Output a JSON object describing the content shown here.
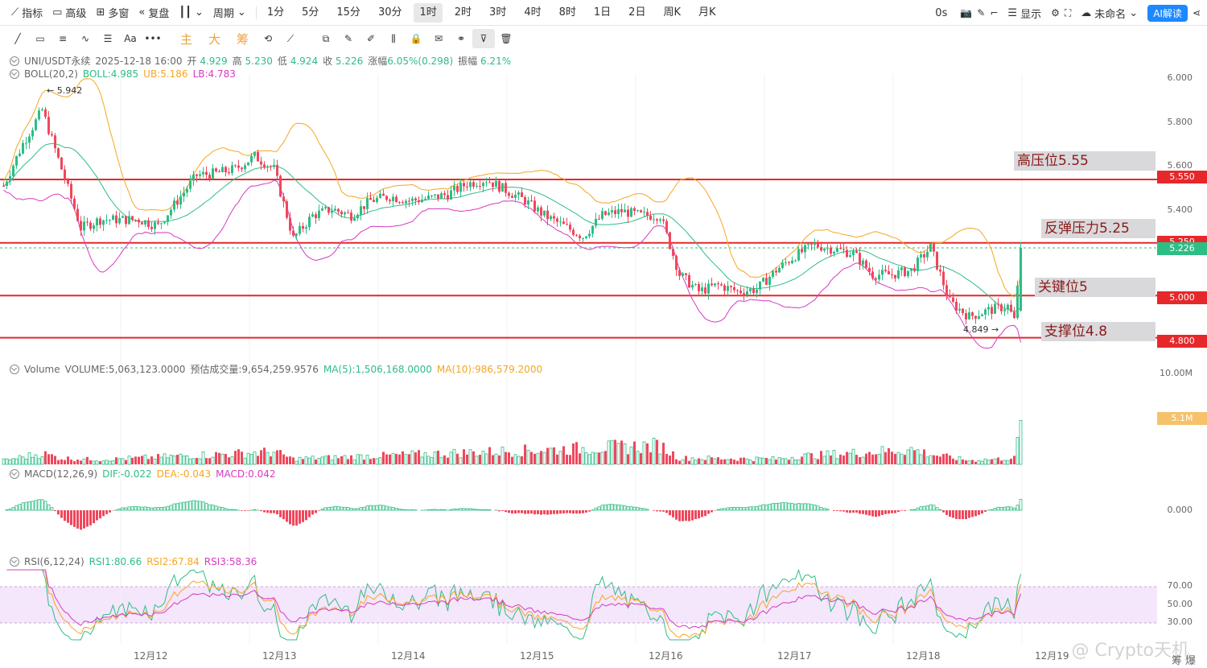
{
  "toolbar": {
    "indicator": "指标",
    "advanced": "高级",
    "multi_window": "多窗",
    "replay": "复盘",
    "chart_type_icon": "candle-icon",
    "period": "周期",
    "intervals": [
      "1分",
      "5分",
      "15分",
      "30分",
      "1时",
      "2时",
      "3时",
      "4时",
      "8时",
      "1日",
      "2日",
      "周K",
      "月K"
    ],
    "active_interval": "1时",
    "countdown": "0s",
    "display": "显示",
    "unnamed": "未命名",
    "ai": "AI解读"
  },
  "drawbar": {
    "modes": [
      "主",
      "大",
      "筹"
    ]
  },
  "legend": {
    "symbol": "UNI/USDT永续",
    "datetime": "2025-12-18 16:00",
    "open_label": "开",
    "open": "4.929",
    "high_label": "高",
    "high": "5.230",
    "low_label": "低",
    "low": "4.924",
    "close_label": "收",
    "close": "5.226",
    "change_label": "涨幅",
    "change": "6.05%(0.298)",
    "amp_label": "振幅",
    "amp": "6.21%",
    "boll_name": "BOLL(20,2)",
    "boll": "BOLL:4.985",
    "ub": "UB:5.186",
    "lb": "LB:4.783",
    "volume_name": "Volume",
    "volume": "VOLUME:5,063,123.0000",
    "est_volume": "预估成交量:9,654,259.9576",
    "vol_ma5": "MA(5):1,506,168.0000",
    "vol_ma10": "MA(10):986,579.2000",
    "macd_name": "MACD(12,26,9)",
    "dif": "DIF:-0.022",
    "dea": "DEA:-0.043",
    "macd": "MACD:0.042",
    "rsi_name": "RSI(6,12,24)",
    "rsi1": "RSI1:80.66",
    "rsi2": "RSI2:67.84",
    "rsi3": "RSI3:58.36"
  },
  "price_axis": [
    "6.000",
    "5.800",
    "5.600",
    "5.400",
    "5.000",
    "4.800"
  ],
  "price_tags": {
    "r555": "5.550",
    "current": "5.226",
    "r5": "5.000",
    "r48": "4.800",
    "hidden": "5.250"
  },
  "volume_axis": {
    "top": "10.00M",
    "tag": "5.1M"
  },
  "macd_axis": "0.000",
  "rsi_axis": [
    "70.00",
    "50.00",
    "30.00"
  ],
  "annotations": {
    "high": "高压位5.55",
    "rebound": "反弹压力5.25",
    "key": "关键位5",
    "support": "支撑位4.8",
    "max_price": "5.942",
    "min_price": "4.849"
  },
  "x_axis": [
    "12月12",
    "12月13",
    "12月14",
    "12月15",
    "12月16",
    "12月17",
    "12月18",
    "12月19"
  ],
  "watermark": "@ Crypto天机",
  "corner": [
    "筹",
    "爆"
  ],
  "colors": {
    "up": "#2ebd85",
    "down": "#f0475c",
    "mid": "#2ebd85",
    "ub": "#f5a623",
    "lb": "#d63bc1",
    "hline": "#e6282b",
    "rsiBand": "#f4e6fb"
  },
  "chart_data": {
    "type": "candlestick",
    "ylim": [
      4.73,
      6.05
    ],
    "support_resistance": [
      5.55,
      5.25,
      5.0,
      4.8
    ],
    "anchors": [
      [
        0,
        5.52
      ],
      [
        6,
        5.72
      ],
      [
        12,
        5.88
      ],
      [
        18,
        5.6
      ],
      [
        24,
        5.32
      ],
      [
        30,
        5.36
      ],
      [
        36,
        5.36
      ],
      [
        42,
        5.36
      ],
      [
        48,
        5.33
      ],
      [
        54,
        5.45
      ],
      [
        60,
        5.57
      ],
      [
        66,
        5.58
      ],
      [
        72,
        5.6
      ],
      [
        78,
        5.66
      ],
      [
        84,
        5.6
      ],
      [
        90,
        5.27
      ],
      [
        96,
        5.38
      ],
      [
        102,
        5.41
      ],
      [
        108,
        5.38
      ],
      [
        114,
        5.45
      ],
      [
        120,
        5.47
      ],
      [
        126,
        5.45
      ],
      [
        132,
        5.46
      ],
      [
        138,
        5.48
      ],
      [
        144,
        5.53
      ],
      [
        150,
        5.55
      ],
      [
        156,
        5.5
      ],
      [
        162,
        5.45
      ],
      [
        168,
        5.38
      ],
      [
        174,
        5.33
      ],
      [
        180,
        5.28
      ],
      [
        186,
        5.38
      ],
      [
        192,
        5.4
      ],
      [
        198,
        5.38
      ],
      [
        204,
        5.38
      ],
      [
        210,
        5.1
      ],
      [
        216,
        5.02
      ],
      [
        222,
        5.05
      ],
      [
        228,
        5.02
      ],
      [
        234,
        5.03
      ],
      [
        240,
        5.12
      ],
      [
        246,
        5.19
      ],
      [
        252,
        5.24
      ],
      [
        258,
        5.22
      ],
      [
        264,
        5.2
      ],
      [
        270,
        5.1
      ],
      [
        276,
        5.1
      ],
      [
        282,
        5.12
      ],
      [
        288,
        5.23
      ],
      [
        294,
        4.97
      ],
      [
        300,
        4.9
      ],
      [
        306,
        4.93
      ],
      [
        312,
        4.95
      ],
      [
        314,
        4.88
      ],
      [
        316,
        5.226
      ]
    ],
    "volume_anchors": [
      [
        0,
        0.5
      ],
      [
        12,
        1.4
      ],
      [
        18,
        0.8
      ],
      [
        30,
        0.6
      ],
      [
        84,
        1.6
      ],
      [
        90,
        0.7
      ],
      [
        204,
        2.4
      ],
      [
        210,
        0.8
      ],
      [
        240,
        0.7
      ],
      [
        246,
        1.0
      ],
      [
        282,
        1.9
      ],
      [
        288,
        1.3
      ],
      [
        300,
        0.5
      ],
      [
        314,
        0.8
      ],
      [
        316,
        5.06
      ]
    ]
  }
}
